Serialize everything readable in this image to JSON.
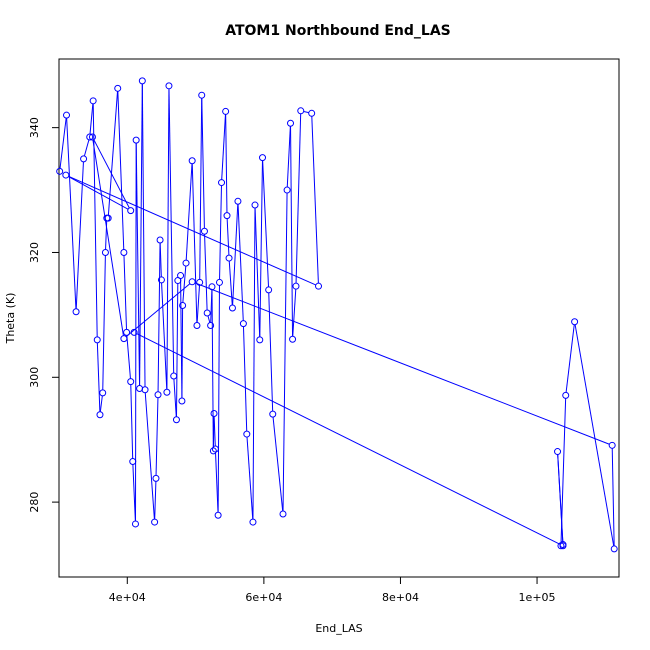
{
  "chart_data": {
    "type": "line",
    "title": "ATOM1 Northbound End_LAS",
    "xlabel": "End_LAS",
    "ylabel": "Theta (K)",
    "xlim": [
      30000,
      112000
    ],
    "ylim": [
      268,
      351
    ],
    "x_ticks": [
      40000,
      60000,
      80000,
      100000
    ],
    "x_tick_labels": [
      "4e+04",
      "6e+04",
      "8e+04",
      "1e+05"
    ],
    "y_ticks": [
      280,
      300,
      320,
      340
    ],
    "y_tick_labels": [
      "280",
      "300",
      "320",
      "340"
    ],
    "grid": false,
    "series_color": "#0000ff",
    "markers": "open-circle",
    "series": [
      {
        "name": "",
        "x": [
          30100,
          31100,
          32500,
          33600,
          34500,
          35000,
          35600,
          36000,
          36400,
          36800,
          37000,
          37200,
          38600,
          39500,
          39900,
          40500,
          40800,
          41200,
          41300,
          41800,
          42200,
          42600,
          44000,
          44200,
          44500,
          44800,
          45000,
          45800,
          46100,
          46800,
          47200,
          47400,
          47800,
          48000,
          48100,
          48600,
          49500,
          50200,
          50600,
          50900,
          51300,
          51700,
          52200,
          52400,
          52600,
          52700,
          52900,
          53300,
          53500,
          53800,
          54400,
          54600,
          54900,
          55400,
          56200,
          57000,
          57500,
          58400,
          58700,
          59400,
          59800,
          60700,
          61300,
          62800,
          63400,
          63900,
          64200,
          64700,
          65400,
          67000,
          68000,
          31000,
          40500,
          34900,
          39500,
          49500,
          111000,
          111300,
          105500,
          104200,
          103500,
          103800,
          103000,
          103800,
          41000
        ]
      }
    ],
    "y_values": [
      333,
      342,
      310.5,
      335,
      338.5,
      344.3,
      306,
      294,
      297.5,
      320,
      325.5,
      325.5,
      346.3,
      320,
      307.2,
      299.3,
      286.5,
      276.5,
      338,
      298.2,
      347.5,
      298,
      276.8,
      283.8,
      297.2,
      322,
      315.6,
      297.6,
      346.7,
      300.2,
      293.2,
      315.5,
      316.3,
      296.2,
      311.5,
      318.3,
      334.7,
      308.3,
      315.2,
      345.2,
      323.4,
      310.3,
      308.3,
      314.5,
      288.2,
      294.2,
      288.5,
      277.9,
      315.2,
      331.2,
      342.6,
      325.9,
      319.1,
      311.1,
      328.2,
      308.6,
      290.9,
      276.8,
      327.6,
      306,
      335.2,
      314,
      294.1,
      278.1,
      330,
      340.7,
      306.1,
      314.6,
      342.7,
      342.3,
      314.6,
      332.4,
      326.7,
      338.5,
      306.2,
      315.3,
      289.1,
      272.5,
      308.9,
      297.1,
      273,
      273.2,
      288.1,
      273,
      307.2
    ]
  }
}
